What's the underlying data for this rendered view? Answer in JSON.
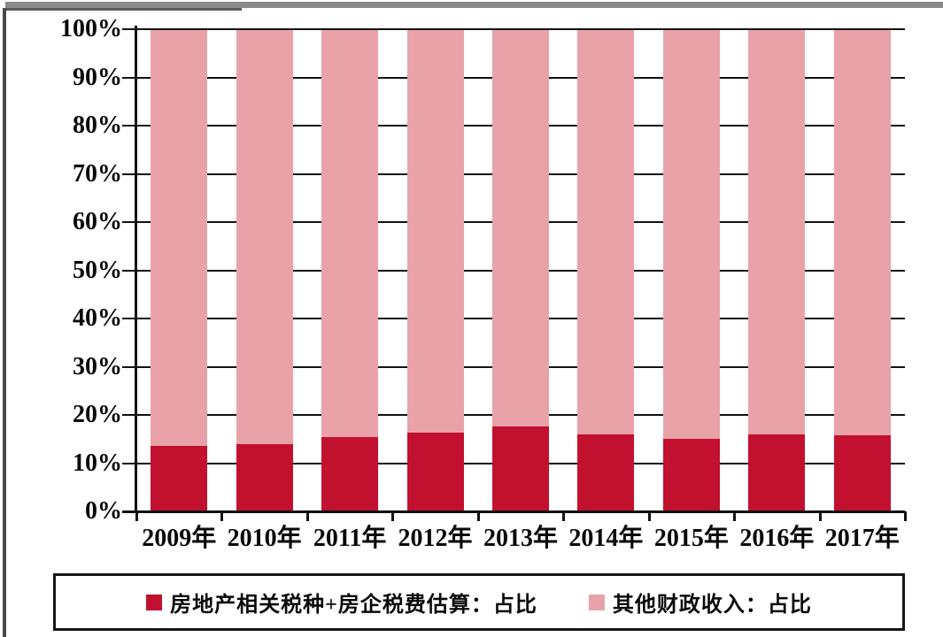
{
  "chart_data": {
    "type": "bar",
    "stacked": true,
    "stack_mode": "percent",
    "title": "",
    "xlabel": "",
    "ylabel": "",
    "categories": [
      "2009年",
      "2010年",
      "2011年",
      "2012年",
      "2013年",
      "2014年",
      "2015年",
      "2016年",
      "2017年"
    ],
    "series": [
      {
        "name": "房地产相关税种+房企税费估算：占比",
        "color": "#C2112E",
        "values": [
          13.5,
          14.0,
          15.5,
          16.3,
          17.6,
          16.0,
          15.1,
          15.9,
          15.8
        ]
      },
      {
        "name": "其他财政收入：占比",
        "color": "#E9A2A8",
        "values": [
          86.5,
          86.0,
          84.5,
          83.7,
          82.4,
          84.0,
          84.9,
          84.1,
          84.2
        ]
      }
    ],
    "ylim": [
      0,
      100
    ],
    "y_ticks": [
      "0%",
      "10%",
      "20%",
      "30%",
      "40%",
      "50%",
      "60%",
      "70%",
      "80%",
      "90%",
      "100%"
    ],
    "grid": "horizontal black gridlines drawn behind bars, visible in gaps",
    "legend_position": "bottom, boxed with black border",
    "axis_color": "#111111"
  }
}
